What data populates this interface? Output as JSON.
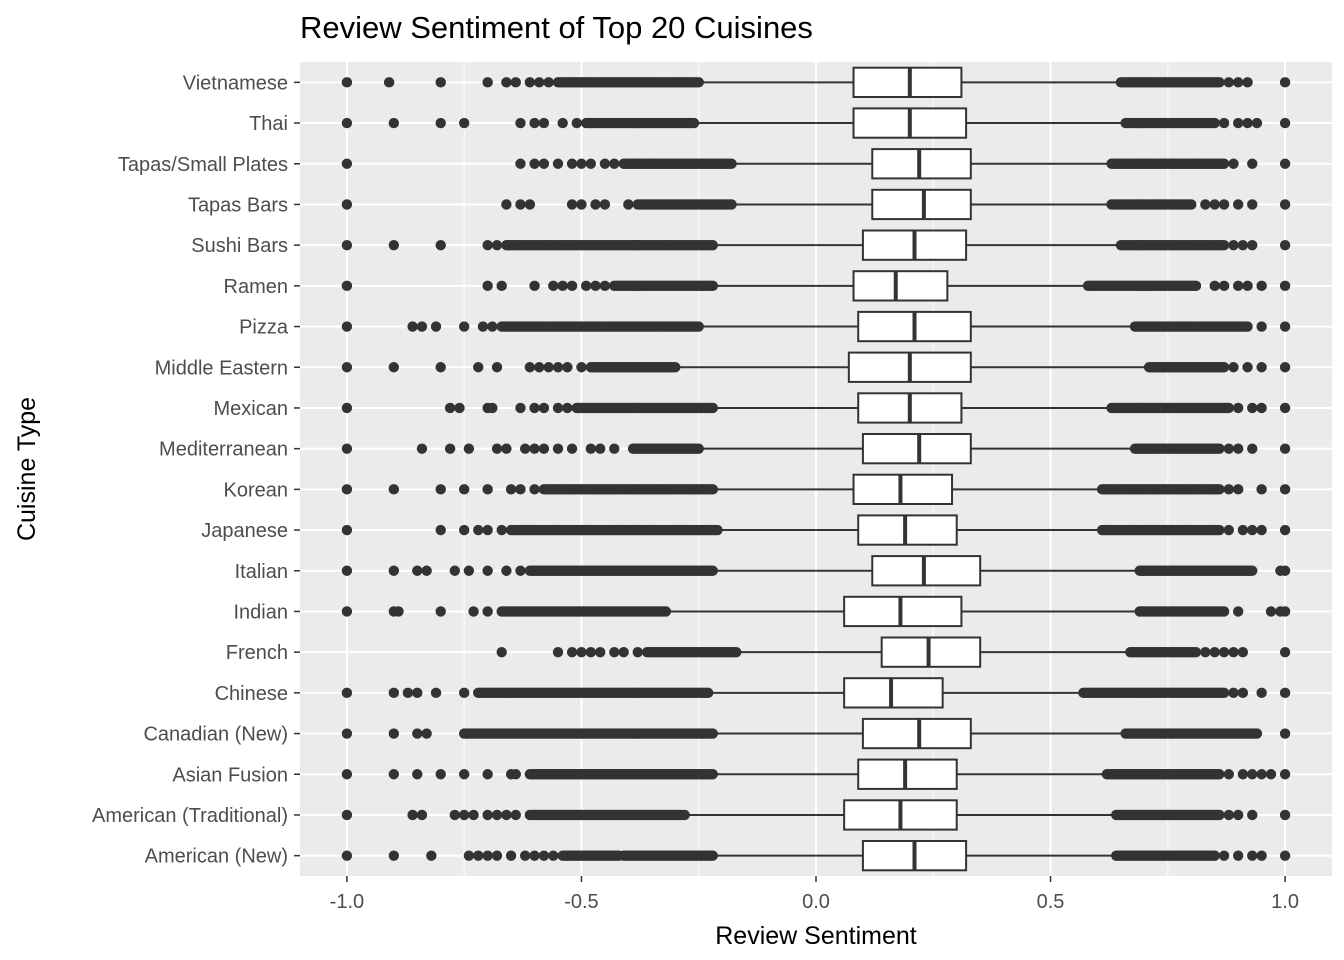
{
  "chart_data": {
    "type": "boxplot",
    "orientation": "horizontal",
    "title": "Review Sentiment of Top 20 Cuisines",
    "xlabel": "Review Sentiment",
    "ylabel": "Cuisine Type",
    "xlim": [
      -1.1,
      1.1
    ],
    "x_ticks": [
      -1.0,
      -0.5,
      0.0,
      0.5,
      1.0
    ],
    "x_tick_labels": [
      "-1.0",
      "-0.5",
      "0.0",
      "0.5",
      "1.0"
    ],
    "grid": true,
    "legend": "none",
    "colors": {
      "panel": "#ebebeb",
      "grid": "#ffffff",
      "box_fill": "#ffffff",
      "box_line": "#333333",
      "point": "#333333"
    },
    "categories": [
      "American (New)",
      "American (Traditional)",
      "Asian Fusion",
      "Canadian (New)",
      "Chinese",
      "French",
      "Indian",
      "Italian",
      "Japanese",
      "Korean",
      "Mediterranean",
      "Mexican",
      "Middle Eastern",
      "Pizza",
      "Ramen",
      "Sushi Bars",
      "Tapas Bars",
      "Tapas/Small Plates",
      "Thai",
      "Vietnamese"
    ],
    "boxes": [
      {
        "cat": "American (New)",
        "q1": 0.1,
        "median": 0.21,
        "q3": 0.32,
        "whisker_low": -0.22,
        "whisker_high": 0.64
      },
      {
        "cat": "American (Traditional)",
        "q1": 0.06,
        "median": 0.18,
        "q3": 0.3,
        "whisker_low": -0.28,
        "whisker_high": 0.64
      },
      {
        "cat": "Asian Fusion",
        "q1": 0.09,
        "median": 0.19,
        "q3": 0.3,
        "whisker_low": -0.22,
        "whisker_high": 0.62
      },
      {
        "cat": "Canadian (New)",
        "q1": 0.1,
        "median": 0.22,
        "q3": 0.33,
        "whisker_low": -0.22,
        "whisker_high": 0.66
      },
      {
        "cat": "Chinese",
        "q1": 0.06,
        "median": 0.16,
        "q3": 0.27,
        "whisker_low": -0.23,
        "whisker_high": 0.57
      },
      {
        "cat": "French",
        "q1": 0.14,
        "median": 0.24,
        "q3": 0.35,
        "whisker_low": -0.17,
        "whisker_high": 0.67
      },
      {
        "cat": "Indian",
        "q1": 0.06,
        "median": 0.18,
        "q3": 0.31,
        "whisker_low": -0.32,
        "whisker_high": 0.69
      },
      {
        "cat": "Italian",
        "q1": 0.12,
        "median": 0.23,
        "q3": 0.35,
        "whisker_low": -0.22,
        "whisker_high": 0.69
      },
      {
        "cat": "Japanese",
        "q1": 0.09,
        "median": 0.19,
        "q3": 0.3,
        "whisker_low": -0.21,
        "whisker_high": 0.61
      },
      {
        "cat": "Korean",
        "q1": 0.08,
        "median": 0.18,
        "q3": 0.29,
        "whisker_low": -0.22,
        "whisker_high": 0.61
      },
      {
        "cat": "Mediterranean",
        "q1": 0.1,
        "median": 0.22,
        "q3": 0.33,
        "whisker_low": -0.25,
        "whisker_high": 0.68
      },
      {
        "cat": "Mexican",
        "q1": 0.09,
        "median": 0.2,
        "q3": 0.31,
        "whisker_low": -0.22,
        "whisker_high": 0.63
      },
      {
        "cat": "Middle Eastern",
        "q1": 0.07,
        "median": 0.2,
        "q3": 0.33,
        "whisker_low": -0.3,
        "whisker_high": 0.71
      },
      {
        "cat": "Pizza",
        "q1": 0.09,
        "median": 0.21,
        "q3": 0.33,
        "whisker_low": -0.25,
        "whisker_high": 0.68
      },
      {
        "cat": "Ramen",
        "q1": 0.08,
        "median": 0.17,
        "q3": 0.28,
        "whisker_low": -0.22,
        "whisker_high": 0.58
      },
      {
        "cat": "Sushi Bars",
        "q1": 0.1,
        "median": 0.21,
        "q3": 0.32,
        "whisker_low": -0.22,
        "whisker_high": 0.65
      },
      {
        "cat": "Tapas Bars",
        "q1": 0.12,
        "median": 0.23,
        "q3": 0.33,
        "whisker_low": -0.18,
        "whisker_high": 0.63
      },
      {
        "cat": "Tapas/Small Plates",
        "q1": 0.12,
        "median": 0.22,
        "q3": 0.33,
        "whisker_low": -0.18,
        "whisker_high": 0.63
      },
      {
        "cat": "Thai",
        "q1": 0.08,
        "median": 0.2,
        "q3": 0.32,
        "whisker_low": -0.25,
        "whisker_high": 0.66
      },
      {
        "cat": "Vietnamese",
        "q1": 0.08,
        "median": 0.2,
        "q3": 0.31,
        "whisker_low": -0.25,
        "whisker_high": 0.65
      }
    ],
    "outliers": {
      "American (New)": {
        "isolated_low": [
          -1.0,
          -0.9,
          -0.82,
          -0.74,
          -0.72,
          -0.7,
          -0.68,
          -0.65,
          -0.62,
          -0.6,
          -0.58,
          -0.56
        ],
        "dense_low": [
          -0.54,
          -0.42
        ],
        "dense_low2": [
          -0.41,
          -0.22
        ],
        "dense_high": [
          0.64,
          0.85
        ],
        "isolated_high": [
          0.87,
          0.9,
          0.93,
          0.95,
          1.0
        ]
      },
      "American (Traditional)": {
        "isolated_low": [
          -1.0,
          -0.86,
          -0.84,
          -0.77,
          -0.75,
          -0.73,
          -0.7,
          -0.68,
          -0.66,
          -0.64
        ],
        "dense_low": [
          -0.61,
          -0.28
        ],
        "dense_high": [
          0.64,
          0.86
        ],
        "isolated_high": [
          0.88,
          0.9,
          0.93,
          1.0
        ]
      },
      "Asian Fusion": {
        "isolated_low": [
          -1.0,
          -0.9,
          -0.85,
          -0.8,
          -0.75,
          -0.7,
          -0.65,
          -0.64
        ],
        "dense_low": [
          -0.61,
          -0.22
        ],
        "dense_high": [
          0.62,
          0.86
        ],
        "isolated_high": [
          0.88,
          0.91,
          0.93,
          0.95,
          0.97,
          1.0
        ]
      },
      "Canadian (New)": {
        "isolated_low": [
          -1.0,
          -0.9,
          -0.85,
          -0.83
        ],
        "dense_low": [
          -0.75,
          -0.22
        ],
        "dense_high": [
          0.66,
          0.94
        ],
        "isolated_high": [
          1.0
        ]
      },
      "Chinese": {
        "isolated_low": [
          -1.0,
          -0.9,
          -0.87,
          -0.85,
          -0.81,
          -0.75
        ],
        "dense_low": [
          -0.72,
          -0.23
        ],
        "dense_high": [
          0.57,
          0.87
        ],
        "isolated_high": [
          0.89,
          0.91,
          0.95,
          1.0
        ]
      },
      "French": {
        "isolated_low": [
          -0.67,
          -0.55,
          -0.52,
          -0.5,
          -0.48,
          -0.46,
          -0.43,
          -0.41,
          -0.38
        ],
        "dense_low": [
          -0.36,
          -0.17
        ],
        "dense_high": [
          0.67,
          0.81
        ],
        "isolated_high": [
          0.83,
          0.85,
          0.87,
          0.89,
          0.91,
          1.0
        ]
      },
      "Indian": {
        "isolated_low": [
          -1.0,
          -0.9,
          -0.89,
          -0.8,
          -0.73,
          -0.7
        ],
        "dense_low": [
          -0.67,
          -0.32
        ],
        "dense_high": [
          0.69,
          0.87
        ],
        "isolated_high": [
          0.9,
          0.97,
          0.99,
          1.0
        ]
      },
      "Italian": {
        "isolated_low": [
          -1.0,
          -0.9,
          -0.85,
          -0.83,
          -0.77,
          -0.74,
          -0.7,
          -0.66,
          -0.63
        ],
        "dense_low": [
          -0.61,
          -0.22
        ],
        "dense_high": [
          0.69,
          0.93
        ],
        "isolated_high": [
          0.99,
          1.0
        ]
      },
      "Japanese": {
        "isolated_low": [
          -1.0,
          -0.8,
          -0.75,
          -0.72,
          -0.7,
          -0.67
        ],
        "dense_low": [
          -0.65,
          -0.21
        ],
        "dense_high": [
          0.61,
          0.86
        ],
        "isolated_high": [
          0.88,
          0.91,
          0.93,
          0.95,
          1.0
        ]
      },
      "Korean": {
        "isolated_low": [
          -1.0,
          -0.9,
          -0.8,
          -0.75,
          -0.7,
          -0.65,
          -0.63,
          -0.6
        ],
        "dense_low": [
          -0.58,
          -0.22
        ],
        "dense_high": [
          0.61,
          0.86
        ],
        "isolated_high": [
          0.88,
          0.9,
          0.95,
          1.0
        ]
      },
      "Mediterranean": {
        "isolated_low": [
          -1.0,
          -0.84,
          -0.78,
          -0.74,
          -0.68,
          -0.66,
          -0.62,
          -0.6,
          -0.58,
          -0.55,
          -0.52,
          -0.48,
          -0.46,
          -0.43
        ],
        "dense_low": [
          -0.39,
          -0.25
        ],
        "dense_high": [
          0.68,
          0.86
        ],
        "isolated_high": [
          0.88,
          0.9,
          0.93,
          1.0
        ]
      },
      "Mexican": {
        "isolated_low": [
          -1.0,
          -0.78,
          -0.76,
          -0.7,
          -0.69,
          -0.63,
          -0.6,
          -0.58,
          -0.55,
          -0.53
        ],
        "dense_low": [
          -0.51,
          -0.22
        ],
        "dense_high": [
          0.63,
          0.88
        ],
        "isolated_high": [
          0.9,
          0.93,
          0.95,
          1.0
        ]
      },
      "Middle Eastern": {
        "isolated_low": [
          -1.0,
          -0.9,
          -0.8,
          -0.72,
          -0.68,
          -0.61,
          -0.59,
          -0.57,
          -0.55,
          -0.53,
          -0.5
        ],
        "dense_low": [
          -0.48,
          -0.3
        ],
        "dense_high": [
          0.71,
          0.87
        ],
        "isolated_high": [
          0.89,
          0.92,
          0.95,
          1.0
        ]
      },
      "Pizza": {
        "isolated_low": [
          -1.0,
          -0.86,
          -0.84,
          -0.81,
          -0.75,
          -0.71,
          -0.69
        ],
        "dense_low": [
          -0.67,
          -0.25
        ],
        "dense_high": [
          0.68,
          0.92
        ],
        "isolated_high": [
          0.95,
          1.0
        ]
      },
      "Ramen": {
        "isolated_low": [
          -1.0,
          -0.7,
          -0.67,
          -0.6,
          -0.56,
          -0.54,
          -0.52,
          -0.49,
          -0.47,
          -0.45
        ],
        "dense_low": [
          -0.43,
          -0.22
        ],
        "dense_high": [
          0.58,
          0.81
        ],
        "isolated_high": [
          0.85,
          0.87,
          0.9,
          0.92,
          0.95,
          1.0
        ]
      },
      "Sushi Bars": {
        "isolated_low": [
          -1.0,
          -0.9,
          -0.8,
          -0.7,
          -0.68
        ],
        "dense_low": [
          -0.66,
          -0.22
        ],
        "dense_high": [
          0.65,
          0.87
        ],
        "isolated_high": [
          0.89,
          0.91,
          0.93,
          1.0
        ]
      },
      "Tapas Bars": {
        "isolated_low": [
          -1.0,
          -0.66,
          -0.63,
          -0.61,
          -0.52,
          -0.5,
          -0.47,
          -0.45,
          -0.4
        ],
        "dense_low": [
          -0.38,
          -0.18
        ],
        "dense_high": [
          0.63,
          0.8
        ],
        "isolated_high": [
          0.83,
          0.85,
          0.87,
          0.9,
          0.93,
          1.0
        ]
      },
      "Tapas/Small Plates": {
        "isolated_low": [
          -1.0,
          -0.63,
          -0.6,
          -0.58,
          -0.55,
          -0.52,
          -0.5,
          -0.48,
          -0.45,
          -0.43
        ],
        "dense_low": [
          -0.41,
          -0.18
        ],
        "dense_high": [
          0.63,
          0.87
        ],
        "isolated_high": [
          0.89,
          0.93,
          1.0
        ]
      },
      "Thai": {
        "isolated_low": [
          -1.0,
          -0.9,
          -0.8,
          -0.75,
          -0.63,
          -0.6,
          -0.58,
          -0.54,
          -0.51
        ],
        "dense_low": [
          -0.49,
          -0.26
        ],
        "dense_high": [
          0.66,
          0.85
        ],
        "isolated_high": [
          0.87,
          0.9,
          0.92,
          0.94,
          1.0
        ]
      },
      "Vietnamese": {
        "isolated_low": [
          -1.0,
          -0.91,
          -0.8,
          -0.7,
          -0.66,
          -0.64,
          -0.61,
          -0.59,
          -0.57
        ],
        "dense_low": [
          -0.55,
          -0.25
        ],
        "dense_high": [
          0.65,
          0.86
        ],
        "isolated_high": [
          0.88,
          0.9,
          0.92,
          1.0
        ]
      }
    }
  }
}
